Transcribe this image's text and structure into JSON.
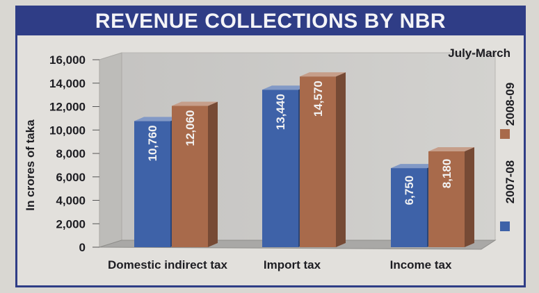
{
  "chart_data": {
    "type": "bar",
    "title": "REVENUE COLLECTIONS BY NBR",
    "subtitle": "July-March",
    "ylabel": "In crores of taka",
    "xlabel": "",
    "categories": [
      "Domestic indirect tax",
      "Import tax",
      "Income tax"
    ],
    "series": [
      {
        "name": "2007-08",
        "values": [
          10760,
          13440,
          6750
        ],
        "labels": [
          "10,760",
          "13,440",
          "6,750"
        ],
        "color": "#3e62a8"
      },
      {
        "name": "2008-09",
        "values": [
          12060,
          14570,
          8180
        ],
        "labels": [
          "12,060",
          "14,570",
          "8,180"
        ],
        "color": "#a86a4b"
      }
    ],
    "ylim": [
      0,
      16000
    ],
    "yticks": [
      0,
      2000,
      4000,
      6000,
      8000,
      10000,
      12000,
      14000,
      16000
    ],
    "ytick_labels": [
      "0",
      "2,000",
      "4,000",
      "6,000",
      "8,000",
      "10,000",
      "12,000",
      "14,000",
      "16,000"
    ],
    "grid": false,
    "legend_position": "right"
  },
  "colors": {
    "frame": "#2f3d86",
    "series_2007_08": "#3e62a8",
    "series_2008_09": "#a86a4b"
  }
}
